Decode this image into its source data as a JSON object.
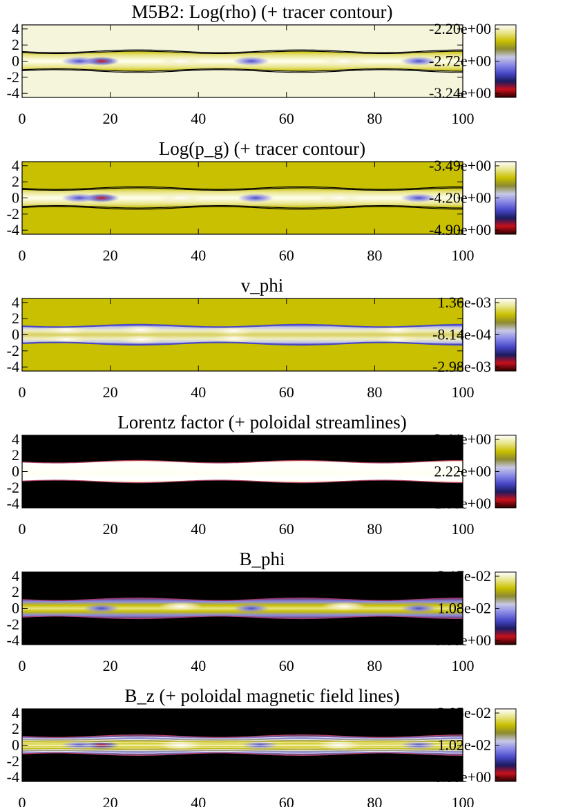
{
  "figure": {
    "page_width": 831,
    "page_height": 1168
  },
  "colors": {
    "colormap": [
      "#2a0000",
      "#c8101c",
      "#1b1b60",
      "#4848c8",
      "#8888e6",
      "#c8c8e6",
      "#8c8a30",
      "#c8c000",
      "#e8e488",
      "#ffffff"
    ],
    "contour": "#000000",
    "streamline": "#ffffff",
    "background_bright": "#f5f5dc",
    "background_olive": "#c8c000",
    "background_black": "#000000"
  },
  "chart_data": [
    {
      "type": "heatmap",
      "title": "M5B2: Log(rho) (+ tracer contour)",
      "xlim": [
        0,
        100
      ],
      "ylim": [
        -4.5,
        4.5
      ],
      "xticks": [
        0,
        20,
        40,
        60,
        80,
        100
      ],
      "yticks": [
        4,
        2,
        0,
        -2,
        -4
      ],
      "colorbar": {
        "ticks": [
          "-2.20e+00",
          "-2.72e+00",
          "-3.24e+00"
        ],
        "range": [
          -3.24,
          -2.2
        ]
      },
      "background": "#f5f5dc",
      "jet": {
        "radius": 1.1,
        "amp": 0.15,
        "wavelength": 37,
        "phase": 17
      },
      "overlay": "contour",
      "features": [
        {
          "x": 18,
          "y": 0,
          "kind": "red"
        },
        {
          "x": 13,
          "y": 0,
          "kind": "blue"
        },
        {
          "x": 36,
          "y": 0,
          "kind": "white"
        },
        {
          "x": 52,
          "y": 0,
          "kind": "blue"
        },
        {
          "x": 73,
          "y": 0,
          "kind": "white"
        },
        {
          "x": 90,
          "y": 0,
          "kind": "blue"
        }
      ]
    },
    {
      "type": "heatmap",
      "title": "Log(p_g) (+ tracer contour)",
      "xlim": [
        0,
        100
      ],
      "ylim": [
        -4.5,
        4.5
      ],
      "xticks": [
        0,
        20,
        40,
        60,
        80,
        100
      ],
      "yticks": [
        4,
        2,
        0,
        -2,
        -4
      ],
      "colorbar": {
        "ticks": [
          "-3.49e+00",
          "-4.20e+00",
          "-4.90e+00"
        ],
        "range": [
          -4.9,
          -3.49
        ]
      },
      "background": "#c8c000",
      "jet": {
        "radius": 1.1,
        "amp": 0.15,
        "wavelength": 37,
        "phase": 17
      },
      "overlay": "contour",
      "features": [
        {
          "x": 18,
          "y": 0,
          "kind": "red"
        },
        {
          "x": 13,
          "y": 0,
          "kind": "blue"
        },
        {
          "x": 36,
          "y": 0,
          "kind": "white"
        },
        {
          "x": 53,
          "y": 0,
          "kind": "blue"
        },
        {
          "x": 72,
          "y": 0,
          "kind": "white"
        },
        {
          "x": 90,
          "y": 0,
          "kind": "blue"
        }
      ]
    },
    {
      "type": "heatmap",
      "title": "v_phi",
      "xlim": [
        0,
        100
      ],
      "ylim": [
        -4.5,
        4.5
      ],
      "xticks": [
        0,
        20,
        40,
        60,
        80,
        100
      ],
      "yticks": [
        4,
        2,
        0,
        -2,
        -4
      ],
      "colorbar": {
        "ticks": [
          "1.36e-03",
          "-8.14e-04",
          "-2.98e-03"
        ],
        "range": [
          -0.00298,
          0.00136
        ]
      },
      "background": "#c8c000",
      "jet": {
        "radius": 1.1,
        "amp": 0.15,
        "wavelength": 37,
        "phase": 17
      },
      "overlay": "edge",
      "features": [
        {
          "x": 10,
          "y": 0.6,
          "kind": "white"
        },
        {
          "x": 10,
          "y": -0.6,
          "kind": "white"
        },
        {
          "x": 27,
          "y": 0.6,
          "kind": "white"
        },
        {
          "x": 27,
          "y": -0.6,
          "kind": "white"
        },
        {
          "x": 48,
          "y": 0.5,
          "kind": "white"
        },
        {
          "x": 48,
          "y": -0.5,
          "kind": "white"
        },
        {
          "x": 85,
          "y": 0.6,
          "kind": "white"
        },
        {
          "x": 85,
          "y": -0.6,
          "kind": "white"
        }
      ]
    },
    {
      "type": "heatmap",
      "title": "Lorentz factor (+ poloidal streamlines)",
      "xlim": [
        0,
        100
      ],
      "ylim": [
        -4.5,
        4.5
      ],
      "xticks": [
        0,
        20,
        40,
        60,
        80,
        100
      ],
      "yticks": [
        4,
        2,
        0,
        -2,
        -4
      ],
      "colorbar": {
        "ticks": [
          "3.44e+00",
          "2.22e+00",
          "1.00e+00"
        ],
        "range": [
          1.0,
          3.44
        ]
      },
      "background": "#000000",
      "jet": {
        "radius": 1.2,
        "amp": 0.15,
        "wavelength": 37,
        "phase": 17
      },
      "overlay": "streamlines",
      "features": []
    },
    {
      "type": "heatmap",
      "title": "B_phi",
      "xlim": [
        0,
        100
      ],
      "ylim": [
        -4.5,
        4.5
      ],
      "xticks": [
        0,
        20,
        40,
        60,
        80,
        100
      ],
      "yticks": [
        4,
        2,
        0,
        -2,
        -4
      ],
      "colorbar": {
        "ticks": [
          "2.17e-02",
          "1.08e-02",
          "0.00e+00"
        ],
        "range": [
          0.0,
          0.0217
        ]
      },
      "background": "#000000",
      "jet": {
        "radius": 1.1,
        "amp": 0.15,
        "wavelength": 37,
        "phase": 17
      },
      "overlay": "none",
      "features": [
        {
          "x": 18,
          "y": 0,
          "kind": "blue"
        },
        {
          "x": 52,
          "y": 0,
          "kind": "blue"
        },
        {
          "x": 90,
          "y": 0,
          "kind": "blue"
        },
        {
          "x": 36,
          "y": 0.25,
          "kind": "white"
        },
        {
          "x": 73,
          "y": 0.25,
          "kind": "white"
        }
      ]
    },
    {
      "type": "heatmap",
      "title": "B_z (+ poloidal magnetic field lines)",
      "xlim": [
        0,
        100
      ],
      "ylim": [
        -4.5,
        4.5
      ],
      "xticks": [
        0,
        20,
        40,
        60,
        80,
        100
      ],
      "yticks": [
        4,
        2,
        0,
        -2,
        -4
      ],
      "colorbar": {
        "ticks": [
          "2.05e-02",
          "1.02e-02",
          "0.00e+00"
        ],
        "range": [
          0.0,
          0.0205
        ]
      },
      "background": "#000000",
      "jet": {
        "radius": 1.1,
        "amp": 0.15,
        "wavelength": 37,
        "phase": 17
      },
      "overlay": "fieldlines",
      "features": [
        {
          "x": 18,
          "y": 0,
          "kind": "red"
        },
        {
          "x": 13,
          "y": 0,
          "kind": "blue"
        },
        {
          "x": 36,
          "y": 0,
          "kind": "white"
        },
        {
          "x": 54,
          "y": 0,
          "kind": "blue"
        },
        {
          "x": 72,
          "y": 0,
          "kind": "white"
        },
        {
          "x": 90,
          "y": 0,
          "kind": "blue"
        }
      ]
    }
  ]
}
